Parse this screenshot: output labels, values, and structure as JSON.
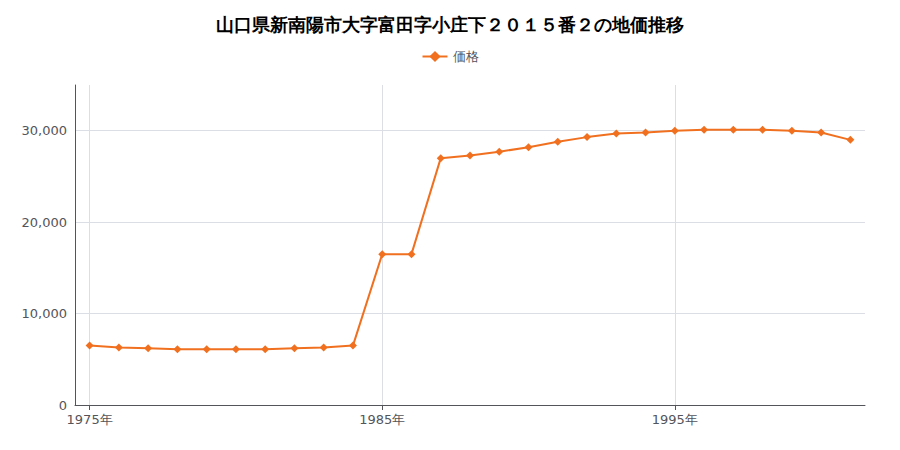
{
  "chart_data": {
    "type": "line",
    "title": "山口県新南陽市大字富田字小庄下２０１５番２の地価推移",
    "x": [
      1975,
      1976,
      1977,
      1978,
      1979,
      1980,
      1981,
      1982,
      1983,
      1984,
      1985,
      1986,
      1987,
      1988,
      1989,
      1990,
      1991,
      1992,
      1993,
      1994,
      1995,
      1996,
      1997,
      1998,
      1999,
      2000,
      2001
    ],
    "series": [
      {
        "name": "価格",
        "color": "#f07020",
        "marker": "diamond",
        "values": [
          6500,
          6300,
          6200,
          6100,
          6100,
          6100,
          6100,
          6200,
          6300,
          6500,
          16500,
          16500,
          27000,
          27300,
          27700,
          28200,
          28800,
          29300,
          29700,
          29800,
          30000,
          30100,
          30100,
          30100,
          30000,
          29800,
          29000
        ]
      }
    ],
    "xlim": [
      1974.5,
      2001.5
    ],
    "xticks": [
      {
        "value": 1975,
        "label": "1975年"
      },
      {
        "value": 1985,
        "label": "1985年"
      },
      {
        "value": 1995,
        "label": "1995年"
      }
    ],
    "ylim": [
      0,
      35000
    ],
    "yticks": [
      0,
      {
        "value": 10000,
        "label": "10,000"
      },
      {
        "value": 20000,
        "label": "20,000"
      },
      {
        "value": 30000,
        "label": "30,000"
      }
    ],
    "grid": true,
    "legend": "top"
  }
}
